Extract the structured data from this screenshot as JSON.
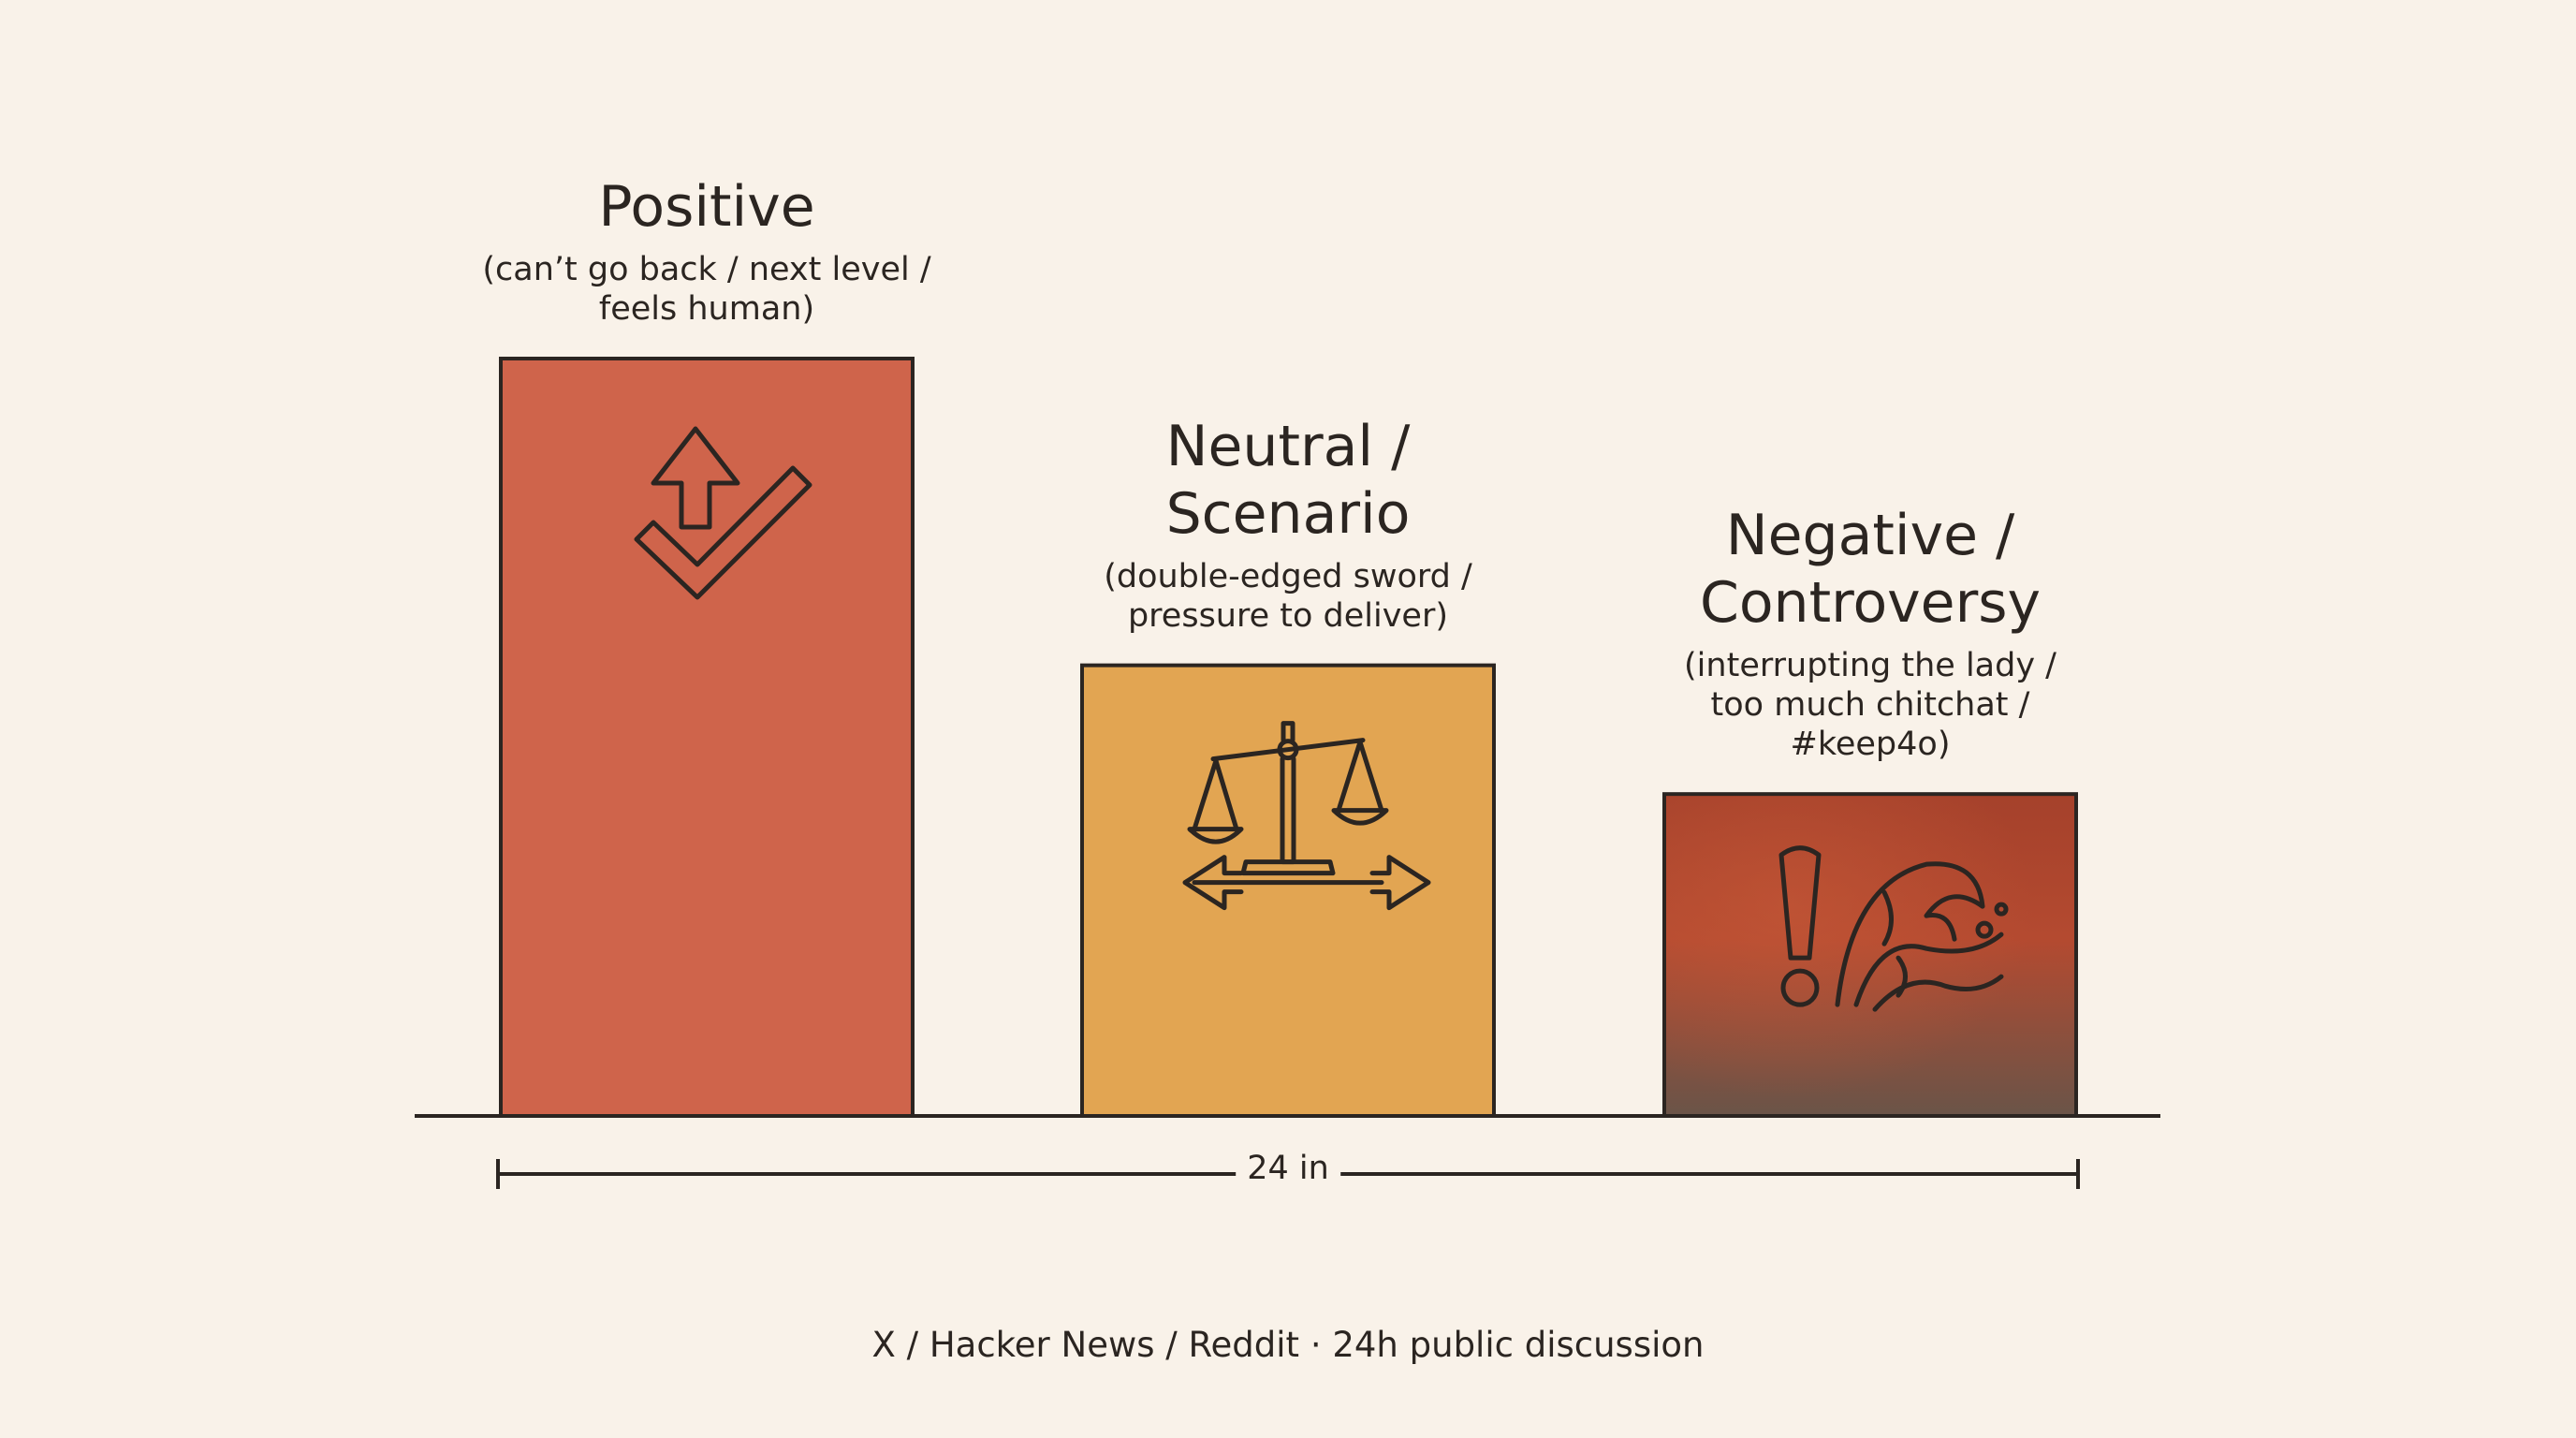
{
  "chart_data": {
    "type": "bar",
    "categories": [
      {
        "name": "Positive",
        "note": "(can’t go back / next level /\nfeels human)",
        "icon": "up-arrow-check-icon",
        "color": "#cf644b"
      },
      {
        "name": "Neutral /\nScenario",
        "note": "(double-edged sword /\npressure to deliver)",
        "icon": "balance-scale-icon",
        "color": "#e2a552"
      },
      {
        "name": "Negative /\nControversy",
        "note": "(interrupting the lady /\ntoo much chitchat /\n#keep4o)",
        "icon": "exclamation-wave-icon",
        "color": "#a5422c"
      }
    ],
    "values": [
      100,
      59.5,
      42.5
    ],
    "ylim": [
      0,
      100
    ],
    "grid": false,
    "measure_label": "24 in"
  },
  "caption": "X / Hacker News / Reddit · 24h public discussion"
}
